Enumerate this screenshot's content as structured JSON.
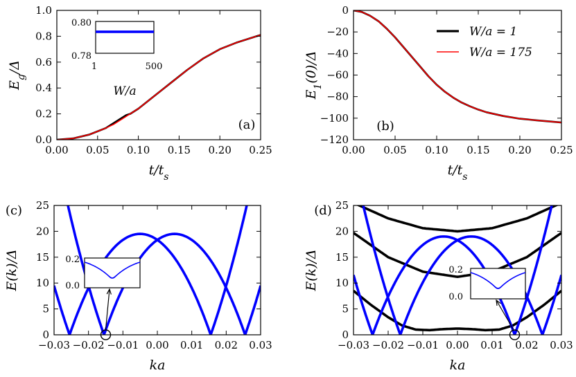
{
  "chart_data": [
    {
      "id": "a",
      "type": "line",
      "panel_label": "(a)",
      "xlabel": "t/t_s",
      "ylabel": "E_g/Δ",
      "xlim": [
        0,
        0.25
      ],
      "ylim": [
        0,
        1.0
      ],
      "xticks": [
        "0.00",
        "0.05",
        "0.10",
        "0.15",
        "0.20",
        "0.25"
      ],
      "yticks": [
        "0.0",
        "0.2",
        "0.4",
        "0.6",
        "0.8",
        "1.0"
      ],
      "series": [
        {
          "name": "W/a = 1",
          "color": "#000000",
          "x": [
            0,
            0.02,
            0.04,
            0.06,
            0.07,
            0.08,
            0.085,
            0.09,
            0.1,
            0.12,
            0.14,
            0.16,
            0.18,
            0.2,
            0.22,
            0.24,
            0.25
          ],
          "y": [
            0,
            0.01,
            0.04,
            0.09,
            0.13,
            0.17,
            0.19,
            0.2,
            0.24,
            0.34,
            0.44,
            0.54,
            0.63,
            0.7,
            0.75,
            0.79,
            0.81
          ]
        },
        {
          "name": "W/a = 175",
          "color": "#ff0000",
          "x": [
            0,
            0.02,
            0.04,
            0.06,
            0.07,
            0.08,
            0.09,
            0.1,
            0.12,
            0.14,
            0.16,
            0.18,
            0.2,
            0.22,
            0.24,
            0.25
          ],
          "y": [
            0,
            0.01,
            0.04,
            0.09,
            0.12,
            0.16,
            0.2,
            0.24,
            0.34,
            0.44,
            0.54,
            0.63,
            0.7,
            0.75,
            0.79,
            0.81
          ]
        }
      ],
      "inset": {
        "xlabel": "W/a",
        "xticks": [
          "1",
          "500"
        ],
        "yticks": [
          "0.80",
          "0.78"
        ],
        "xlim": [
          1,
          500
        ],
        "ylim": [
          0.78,
          0.8
        ],
        "value": 0.7935,
        "color": "#0000ff"
      }
    },
    {
      "id": "b",
      "type": "line",
      "panel_label": "(b)",
      "xlabel": "t/t_s",
      "ylabel": "E_1(0)/Δ",
      "xlim": [
        0,
        0.25
      ],
      "ylim": [
        -120,
        0
      ],
      "xticks": [
        "0.00",
        "0.05",
        "0.10",
        "0.15",
        "0.20",
        "0.25"
      ],
      "yticks": [
        "0",
        "−20",
        "−40",
        "−60",
        "−80",
        "−100",
        "−120"
      ],
      "legend": [
        "W/a = 1",
        "W/a = 175"
      ],
      "legend_position": "top-right",
      "series": [
        {
          "name": "W/a = 1",
          "color": "#000000",
          "x": [
            0,
            0.01,
            0.02,
            0.03,
            0.04,
            0.05,
            0.06,
            0.07,
            0.08,
            0.09,
            0.1,
            0.11,
            0.12,
            0.13,
            0.14,
            0.15,
            0.16,
            0.18,
            0.2,
            0.22,
            0.25
          ],
          "y": [
            0,
            -1.5,
            -5,
            -10,
            -17,
            -25,
            -34,
            -43,
            -52,
            -61,
            -69,
            -75.5,
            -81,
            -85.5,
            -89,
            -92,
            -94.5,
            -98,
            -100.5,
            -102,
            -104
          ]
        },
        {
          "name": "W/a = 175",
          "color": "#ff0000",
          "x": [
            0,
            0.01,
            0.02,
            0.03,
            0.04,
            0.05,
            0.06,
            0.07,
            0.08,
            0.09,
            0.1,
            0.11,
            0.12,
            0.13,
            0.14,
            0.15,
            0.16,
            0.18,
            0.2,
            0.22,
            0.25
          ],
          "y": [
            0,
            -1.5,
            -5,
            -10,
            -17,
            -25,
            -34,
            -43,
            -52,
            -61,
            -69,
            -75.5,
            -81,
            -85.5,
            -89,
            -92,
            -94.5,
            -98,
            -100.5,
            -102,
            -104
          ]
        }
      ]
    },
    {
      "id": "c",
      "type": "line",
      "panel_label": "(c)",
      "xlabel": "ka",
      "ylabel": "E(k)/Δ",
      "xlim": [
        -0.03,
        0.03
      ],
      "ylim": [
        0,
        25
      ],
      "xticks": [
        "−0.03",
        "−0.02",
        "−0.01",
        "0.00",
        "0.01",
        "0.02",
        "0.03"
      ],
      "yticks": [
        "0",
        "5",
        "10",
        "15",
        "20",
        "25"
      ],
      "inset_labels": [
        "0.2",
        "0.0"
      ],
      "circle_at": [
        -0.015,
        0
      ],
      "bands": [
        {
          "color": "#0000ff",
          "center": 0.005,
          "peak": 19.5,
          "zeros": [
            -0.0155,
            0.0255
          ]
        },
        {
          "color": "#0000ff",
          "center": -0.005,
          "peak": 19.5,
          "zeros": [
            -0.0255,
            0.0155
          ]
        }
      ]
    },
    {
      "id": "d",
      "type": "line",
      "panel_label": "(d)",
      "xlabel": "ka",
      "ylabel": "E(k)/Δ",
      "xlim": [
        -0.03,
        0.03
      ],
      "ylim": [
        0,
        25
      ],
      "xticks": [
        "−0.03",
        "−0.02",
        "−0.01",
        "0.00",
        "0.01",
        "0.02",
        "0.03"
      ],
      "yticks": [
        "0",
        "5",
        "10",
        "15",
        "20",
        "25"
      ],
      "inset_labels": [
        "0.2",
        "0.0"
      ],
      "circle_at": [
        0.0165,
        0
      ],
      "bands": [
        {
          "color": "#0000ff",
          "center": 0.004,
          "peak": 19.0,
          "zeros": [
            -0.0165,
            0.0245
          ]
        },
        {
          "color": "#0000ff",
          "center": -0.004,
          "peak": 19.0,
          "zeros": [
            -0.0245,
            0.0165
          ]
        }
      ],
      "black_curves": [
        {
          "x": [
            -0.03,
            -0.02,
            -0.01,
            0.0,
            0.01,
            0.02,
            0.03
          ],
          "y": [
            25.5,
            22.5,
            20.6,
            20.0,
            20.6,
            22.5,
            25.5
          ]
        },
        {
          "x": [
            -0.03,
            -0.02,
            -0.01,
            0.0,
            0.01,
            0.02,
            0.03
          ],
          "y": [
            19.7,
            15.0,
            12.2,
            11.2,
            12.2,
            15.0,
            19.7
          ]
        },
        {
          "x": [
            -0.03,
            -0.025,
            -0.02,
            -0.016,
            -0.012,
            -0.008,
            -0.004,
            0.0,
            0.004,
            0.008,
            0.012,
            0.016,
            0.02,
            0.025,
            0.03
          ],
          "y": [
            8.5,
            5.8,
            3.4,
            1.8,
            1.0,
            0.9,
            1.1,
            1.2,
            1.1,
            0.9,
            1.0,
            1.8,
            3.4,
            5.8,
            8.5
          ]
        }
      ]
    }
  ]
}
